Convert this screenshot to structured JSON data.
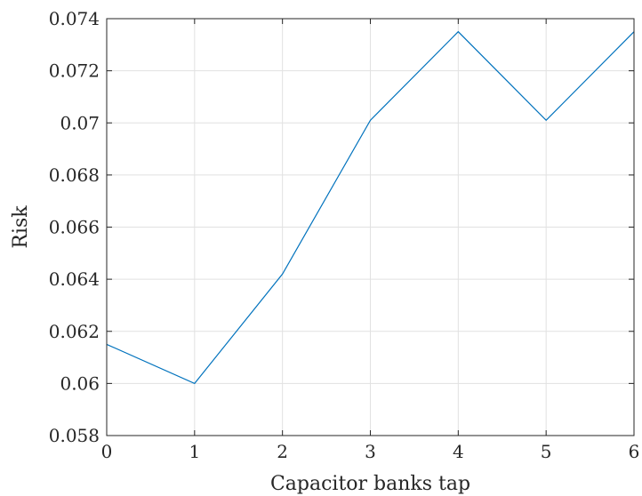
{
  "chart_data": {
    "type": "line",
    "title": "",
    "xlabel": "Capacitor banks tap",
    "ylabel": "Risk",
    "xlim": [
      0,
      6
    ],
    "ylim": [
      0.058,
      0.074
    ],
    "x_ticks": [
      "0",
      "1",
      "2",
      "3",
      "4",
      "5",
      "6"
    ],
    "y_ticks": [
      "0.058",
      "0.06",
      "0.062",
      "0.064",
      "0.066",
      "0.068",
      "0.07",
      "0.072",
      "0.074"
    ],
    "grid": true,
    "series": [
      {
        "x": [
          0,
          1,
          2,
          3,
          4,
          5,
          6
        ],
        "y": [
          0.0615,
          0.06,
          0.0642,
          0.0701,
          0.0735,
          0.0701,
          0.0735
        ],
        "color": "#0072bd"
      }
    ]
  }
}
